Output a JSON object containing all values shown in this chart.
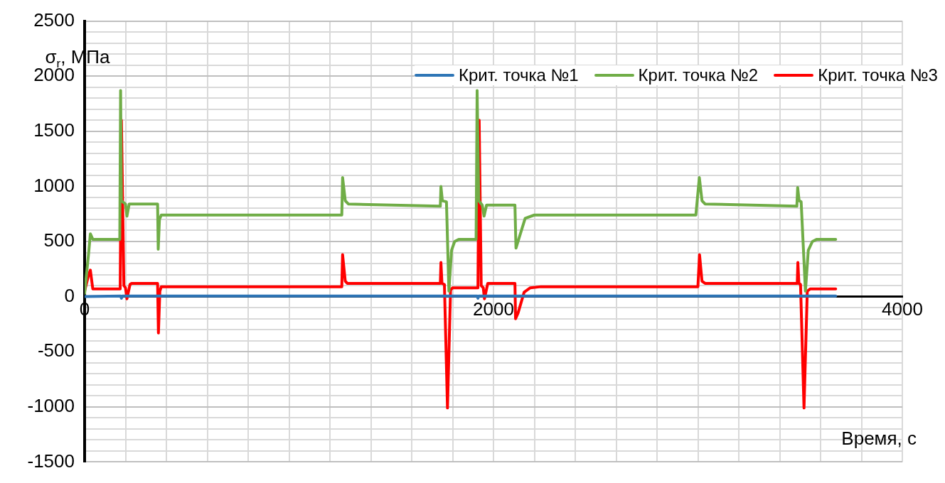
{
  "chart_data": {
    "type": "line",
    "ylabel": "σ$_{r}$, МПа",
    "xlabel": "Время, с",
    "xlim": [
      0,
      4000
    ],
    "ylim": [
      -1500,
      2500
    ],
    "xticks": [
      0,
      {
        "value": 200,
        "label": null
      },
      {
        "value": 400,
        "label": null
      },
      {
        "value": 600,
        "label": null
      },
      {
        "value": 800,
        "label": null
      },
      {
        "value": 1000,
        "label": null
      },
      {
        "value": 1200,
        "label": null
      },
      {
        "value": 1400,
        "label": null
      },
      {
        "value": 1600,
        "label": null
      },
      {
        "value": 1800,
        "label": null
      },
      2000,
      {
        "value": 2200,
        "label": null
      },
      {
        "value": 2400,
        "label": null
      },
      {
        "value": 2600,
        "label": null
      },
      {
        "value": 2800,
        "label": null
      },
      {
        "value": 3000,
        "label": null
      },
      {
        "value": 3200,
        "label": null
      },
      {
        "value": 3400,
        "label": null
      },
      {
        "value": 3600,
        "label": null
      },
      {
        "value": 3800,
        "label": null
      },
      4000
    ],
    "yticks": [
      -1500,
      {
        "value": -1400,
        "label": null
      },
      {
        "value": -1300,
        "label": null
      },
      {
        "value": -1200,
        "label": null
      },
      {
        "value": -1100,
        "label": null
      },
      -1000,
      {
        "value": -900,
        "label": null
      },
      {
        "value": -800,
        "label": null
      },
      {
        "value": -700,
        "label": null
      },
      {
        "value": -600,
        "label": null
      },
      -500,
      {
        "value": -400,
        "label": null
      },
      {
        "value": -300,
        "label": null
      },
      {
        "value": -200,
        "label": null
      },
      {
        "value": -100,
        "label": null
      },
      0,
      {
        "value": 100,
        "label": null
      },
      {
        "value": 200,
        "label": null
      },
      {
        "value": 300,
        "label": null
      },
      {
        "value": 400,
        "label": null
      },
      500,
      {
        "value": 600,
        "label": null
      },
      {
        "value": 700,
        "label": null
      },
      {
        "value": 800,
        "label": null
      },
      {
        "value": 900,
        "label": null
      },
      1000,
      {
        "value": 1100,
        "label": null
      },
      {
        "value": 1200,
        "label": null
      },
      {
        "value": 1300,
        "label": null
      },
      {
        "value": 1400,
        "label": null
      },
      1500,
      {
        "value": 1600,
        "label": null
      },
      {
        "value": 1700,
        "label": null
      },
      {
        "value": 1800,
        "label": null
      },
      {
        "value": 1900,
        "label": null
      },
      2000,
      {
        "value": 2100,
        "label": null
      },
      {
        "value": 2200,
        "label": null
      },
      {
        "value": 2300,
        "label": null
      },
      {
        "value": 2400,
        "label": null
      },
      2500
    ],
    "grid": true,
    "legend": "top right",
    "marker": "none",
    "line_style": "solid",
    "series": [
      {
        "name": "Крит. точка №1",
        "color": "#2e75b6",
        "x": [
          0,
          176,
          180,
          185,
          1920,
          1924,
          1928,
          3674
        ],
        "values": [
          0,
          5,
          -15,
          5,
          5,
          -15,
          5,
          5
        ]
      },
      {
        "name": "Крит. точка №2",
        "color": "#70ad47",
        "x": [
          0,
          20,
          28,
          40,
          172,
          176,
          180,
          200,
          207,
          218,
          357,
          360,
          366,
          375,
          1258,
          1262,
          1275,
          1290,
          1740,
          1743,
          1750,
          1770,
          1782,
          1795,
          1810,
          1830,
          1915,
          1920,
          1928,
          1945,
          1954,
          1966,
          2105,
          2110,
          2130,
          2155,
          2200,
          2990,
          3007,
          3020,
          3035,
          3484,
          3488,
          3495,
          3505,
          3526,
          3540,
          3560,
          3582,
          3674
        ],
        "values": [
          30,
          400,
          570,
          520,
          520,
          1870,
          870,
          840,
          730,
          840,
          840,
          430,
          700,
          740,
          740,
          1080,
          870,
          840,
          820,
          1000,
          870,
          860,
          50,
          420,
          500,
          520,
          520,
          1870,
          870,
          830,
          730,
          830,
          830,
          440,
          560,
          710,
          740,
          740,
          1080,
          870,
          840,
          820,
          990,
          870,
          860,
          50,
          420,
          500,
          520,
          520
        ]
      },
      {
        "name": "Крит. точка №3",
        "color": "#ff0000",
        "x": [
          0,
          20,
          28,
          40,
          174,
          180,
          192,
          200,
          207,
          222,
          230,
          357,
          361,
          368,
          375,
          1258,
          1262,
          1275,
          1285,
          1740,
          1743,
          1748,
          1760,
          1775,
          1790,
          1800,
          1924,
          1930,
          1940,
          1950,
          1956,
          1972,
          2105,
          2108,
          2120,
          2150,
          2180,
          2232,
          3000,
          3008,
          3020,
          3035,
          3486,
          3489,
          3494,
          3502,
          3519,
          3535,
          3550,
          3674
        ],
        "values": [
          50,
          200,
          240,
          70,
          70,
          1600,
          100,
          80,
          -20,
          110,
          120,
          120,
          -330,
          50,
          90,
          90,
          380,
          140,
          120,
          120,
          310,
          120,
          110,
          -1010,
          60,
          80,
          80,
          1600,
          100,
          80,
          -20,
          120,
          120,
          -200,
          -150,
          40,
          80,
          90,
          90,
          380,
          140,
          120,
          120,
          310,
          120,
          110,
          -1010,
          50,
          70,
          70
        ]
      }
    ]
  }
}
